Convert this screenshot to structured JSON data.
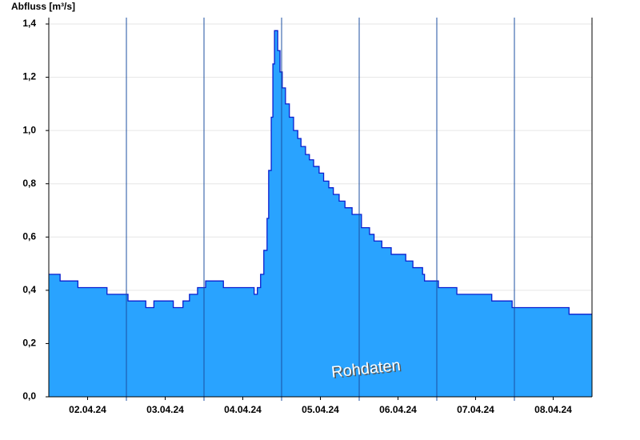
{
  "chart_data": {
    "type": "step-area",
    "y_label": "Abfluss [m³/s]",
    "annotation": "Rohdaten",
    "color": "#29a3ff",
    "line_color": "#0a1ecf",
    "grid": true,
    "xlim": [
      0,
      168
    ],
    "xticks": [
      {
        "value": 12,
        "label": "02.04.24"
      },
      {
        "value": 36,
        "label": "03.04.24"
      },
      {
        "value": 60,
        "label": "04.04.24"
      },
      {
        "value": 84,
        "label": "05.04.24"
      },
      {
        "value": 108,
        "label": "06.04.24"
      },
      {
        "value": 132,
        "label": "07.04.24"
      },
      {
        "value": 156,
        "label": "08.04.24"
      }
    ],
    "day_boundaries": [
      24,
      48,
      72,
      96,
      120,
      144
    ],
    "ylim": [
      0,
      1.4
    ],
    "yticks": [
      {
        "value": 0,
        "label": "0,0"
      },
      {
        "value": 0.2,
        "label": "0,2"
      },
      {
        "value": 0.4,
        "label": "0,4"
      },
      {
        "value": 0.6,
        "label": "0,6"
      },
      {
        "value": 0.8,
        "label": "0,8"
      },
      {
        "value": 1.0,
        "label": "1,0"
      },
      {
        "value": 1.2,
        "label": "1,2"
      },
      {
        "value": 1.4,
        "label": "1,4"
      }
    ],
    "x": [
      0,
      3.5,
      9,
      18,
      24.5,
      30,
      32.5,
      38.5,
      41.5,
      43.5,
      46,
      48.5,
      54,
      63.5,
      64.5,
      65.5,
      66.5,
      67.5,
      68,
      68.8,
      69.3,
      69.8,
      70.8,
      71.5,
      72.2,
      73.2,
      74.4,
      75.7,
      77,
      78,
      79.4,
      80.6,
      81.9,
      83.6,
      85,
      86.6,
      88,
      89.8,
      91.6,
      93.8,
      96.7,
      99.2,
      100.6,
      103,
      105.9,
      110.4,
      112.6,
      115.6,
      116.2,
      120.5,
      126.2,
      137,
      143.3,
      160.9,
      168
    ],
    "values": [
      0.46,
      0.435,
      0.41,
      0.385,
      0.36,
      0.335,
      0.36,
      0.335,
      0.36,
      0.385,
      0.41,
      0.435,
      0.41,
      0.385,
      0.41,
      0.46,
      0.55,
      0.67,
      0.85,
      1.05,
      1.25,
      1.375,
      1.3,
      1.22,
      1.16,
      1.1,
      1.05,
      1.0,
      0.97,
      0.94,
      0.91,
      0.89,
      0.865,
      0.84,
      0.81,
      0.785,
      0.76,
      0.735,
      0.71,
      0.685,
      0.635,
      0.61,
      0.585,
      0.56,
      0.535,
      0.51,
      0.485,
      0.46,
      0.435,
      0.41,
      0.385,
      0.36,
      0.335,
      0.31,
      0.31
    ]
  }
}
